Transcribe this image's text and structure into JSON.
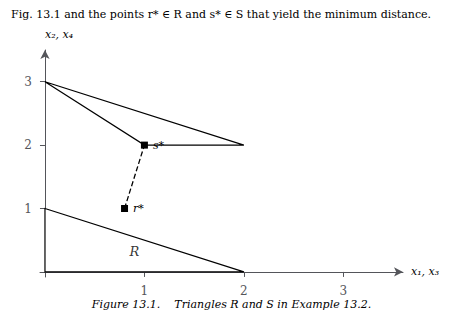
{
  "chart_data": {
    "type": "polygon",
    "title": "Fig. 13.1 and the points r* ∈ R and s* ∈ S that yield the minimum distance.",
    "caption": "Figure 13.1.    Triangles R and S in Example 13.2.",
    "xlabel": "x₁, x₃",
    "ylabel": "x₂, x₄",
    "series": [
      {
        "type": "polygon",
        "values": [
          [
            0,
            0
          ],
          [
            0,
            1
          ],
          [
            2,
            0
          ]
        ],
        "color": "#000000"
      },
      {
        "type": "polygon",
        "values": [
          [
            0,
            3
          ],
          [
            1,
            2
          ],
          [
            2,
            2
          ]
        ],
        "color": "#000000"
      },
      {
        "type": "line",
        "values": [
          [
            0.8,
            1.0
          ],
          [
            1.0,
            2.0
          ]
        ],
        "labels": [
          "r*",
          "s*"
        ],
        "color": "#000000",
        "line_style": "dashed",
        "marker": "square"
      }
    ],
    "annotations": [
      {
        "text": "R",
        "x": 0.9,
        "y": 0.32
      }
    ],
    "xlim": [
      -0.05,
      3.6
    ],
    "ylim": [
      -0.08,
      3.5
    ],
    "xticks": [
      1,
      2,
      3
    ],
    "yticks": [
      1,
      2,
      3
    ],
    "grid": false
  }
}
